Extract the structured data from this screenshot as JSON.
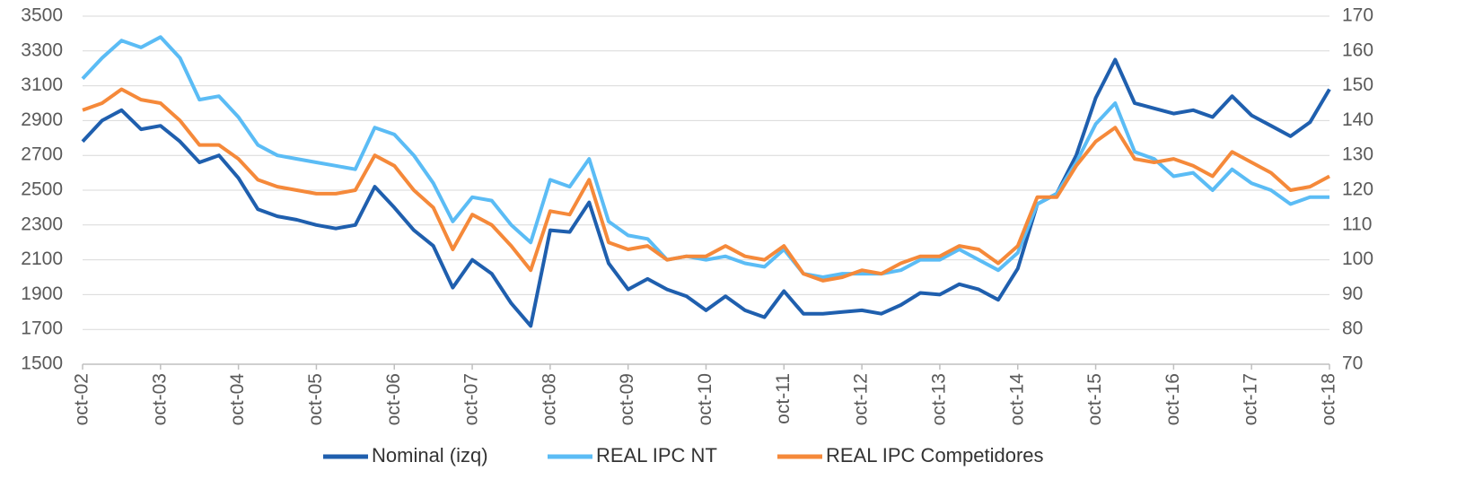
{
  "chart_data": {
    "type": "line",
    "categories": [
      "oct-02",
      null,
      null,
      null,
      "oct-03",
      null,
      null,
      null,
      "oct-04",
      null,
      null,
      null,
      "oct-05",
      null,
      null,
      null,
      "oct-06",
      null,
      null,
      null,
      "oct-07",
      null,
      null,
      null,
      "oct-08",
      null,
      null,
      null,
      "oct-09",
      null,
      null,
      null,
      "oct-10",
      null,
      null,
      null,
      "oct-11",
      null,
      null,
      null,
      "oct-12",
      null,
      null,
      null,
      "oct-13",
      null,
      null,
      null,
      "oct-14",
      null,
      null,
      null,
      "oct-15",
      null,
      null,
      null,
      "oct-16",
      null,
      null,
      null,
      "oct-17",
      null,
      null,
      null,
      "oct-18"
    ],
    "series": [
      {
        "name": "Nominal (izq)",
        "color": "#1f5fae",
        "values": [
          2780,
          2900,
          2960,
          2850,
          2870,
          2780,
          2660,
          2700,
          2570,
          2390,
          2350,
          2330,
          2300,
          2280,
          2300,
          2520,
          2400,
          2270,
          2180,
          1940,
          2100,
          2020,
          1850,
          1720,
          2270,
          2260,
          2430,
          2080,
          1930,
          1990,
          1930,
          1890,
          1810,
          1890,
          1810,
          1770,
          1920,
          1790,
          1790,
          1800,
          1810,
          1790,
          1840,
          1910,
          1900,
          1960,
          1930,
          1870,
          2050,
          2420,
          2480,
          2700,
          3030,
          3250,
          3000,
          2970,
          2940,
          2960,
          2920,
          3040,
          2930,
          2870,
          2810,
          2890,
          3080
        ]
      },
      {
        "name": "REAL IPC NT",
        "color": "#5bbcf5",
        "axis": "y2",
        "values": [
          152,
          158,
          163,
          161,
          164,
          158,
          146,
          147,
          141,
          133,
          130,
          129,
          128,
          127,
          126,
          138,
          136,
          130,
          122,
          111,
          118,
          117,
          110,
          105,
          123,
          121,
          129,
          111,
          107,
          106,
          100,
          101,
          100,
          101,
          99,
          98,
          103,
          96,
          95,
          96,
          96,
          96,
          97,
          100,
          100,
          103,
          100,
          97,
          102,
          116,
          119,
          128,
          139,
          145,
          131,
          129,
          124,
          125,
          120,
          126,
          122,
          120,
          116,
          118,
          118
        ]
      },
      {
        "name": "REAL IPC Competidores",
        "color": "#f5893a",
        "axis": "y2",
        "values": [
          143,
          145,
          149,
          146,
          145,
          140,
          133,
          133,
          129,
          123,
          121,
          120,
          119,
          119,
          120,
          130,
          127,
          120,
          115,
          103,
          113,
          110,
          104,
          97,
          114,
          113,
          123,
          105,
          103,
          104,
          100,
          101,
          101,
          104,
          101,
          100,
          104,
          96,
          94,
          95,
          97,
          96,
          99,
          101,
          101,
          104,
          103,
          99,
          104,
          118,
          118,
          127,
          134,
          138,
          129,
          128,
          129,
          127,
          124,
          131,
          128,
          125,
          120,
          121,
          124
        ]
      }
    ],
    "ylim": [
      1500,
      3500
    ],
    "yticks": [
      1500,
      1700,
      1900,
      2100,
      2300,
      2500,
      2700,
      2900,
      3100,
      3300,
      3500
    ],
    "y2lim": [
      70,
      170
    ],
    "y2ticks": [
      70,
      80,
      90,
      100,
      110,
      120,
      130,
      140,
      150,
      160,
      170
    ],
    "grid": true,
    "legend": "bottom"
  }
}
